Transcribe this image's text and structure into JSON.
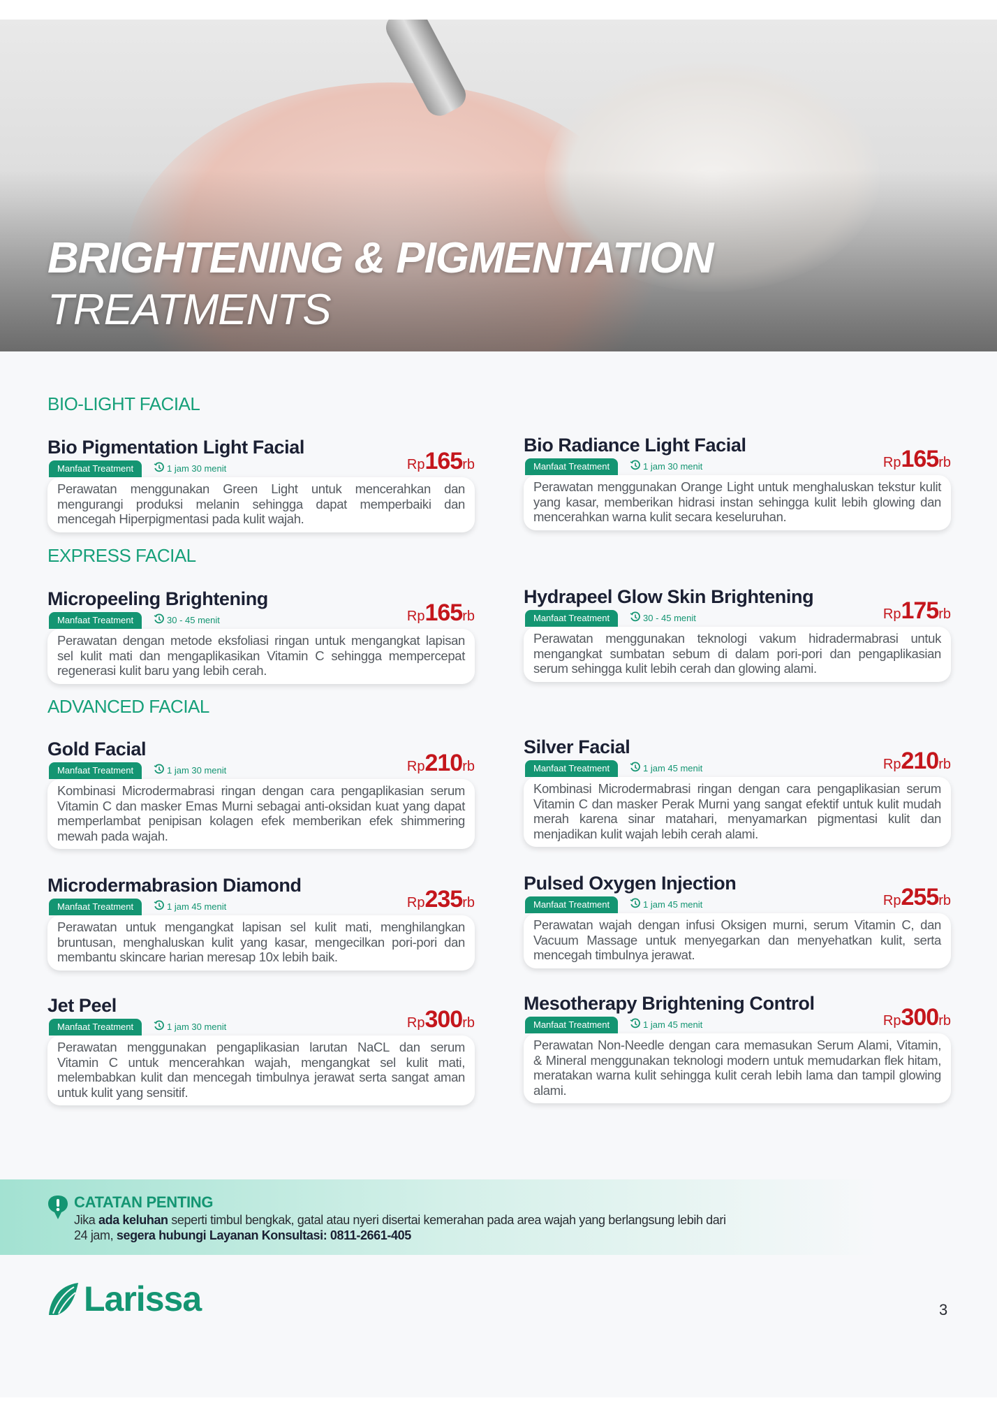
{
  "hero": {
    "title_line1": "BRIGHTENING & PIGMENTATION",
    "title_line2": "TREATMENTS"
  },
  "badge_label": "Manfaat Treatment",
  "currency_prefix": "Rp",
  "currency_suffix": "rb",
  "colors": {
    "accent": "#149572",
    "price": "#c4161c",
    "heading": "#17a07a"
  },
  "sections": [
    {
      "label": "BIO-LIGHT FACIAL"
    },
    {
      "label": "EXPRESS FACIAL"
    },
    {
      "label": "ADVANCED FACIAL"
    }
  ],
  "items": [
    {
      "title": "Bio Pigmentation Light Facial",
      "duration": "1 jam 30 menit",
      "price": "165",
      "desc": "Perawatan menggunakan Green Light untuk mencerahkan dan mengurangi produksi melanin sehingga dapat memperbaiki dan mencegah Hiperpigmentasi pada kulit wajah."
    },
    {
      "title": "Bio Radiance Light Facial",
      "duration": "1 jam 30 menit",
      "price": "165",
      "desc": "Perawatan menggunakan Orange Light untuk menghaluskan tekstur kulit yang kasar, memberikan hidrasi instan sehingga kulit lebih glowing dan mencerahkan warna kulit secara keseluruhan."
    },
    {
      "title": "Micropeeling Brightening",
      "duration": "30 - 45 menit",
      "price": "165",
      "desc": "Perawatan dengan metode eksfoliasi ringan untuk mengangkat lapisan sel kulit mati dan mengaplikasikan Vitamin C sehingga mempercepat regenerasi kulit baru yang lebih cerah."
    },
    {
      "title": "Hydrapeel Glow Skin Brightening",
      "duration": "30 - 45 menit",
      "price": "175",
      "desc": "Perawatan menggunakan teknologi vakum hidradermabrasi untuk mengangkat sumbatan sebum di dalam pori-pori dan pengaplikasian serum sehingga kulit lebih cerah dan glowing alami."
    },
    {
      "title": "Gold Facial",
      "duration": "1 jam 30 menit",
      "price": "210",
      "desc": "Kombinasi Microdermabrasi ringan dengan cara pengaplikasian serum Vitamin C dan masker Emas Murni sebagai anti-oksidan kuat yang dapat memperlambat penipisan kolagen efek memberikan efek shimmering mewah pada wajah."
    },
    {
      "title": "Silver Facial",
      "duration": "1 jam 45 menit",
      "price": "210",
      "desc": "Kombinasi Microdermabrasi ringan dengan cara pengaplikasian serum Vitamin C dan masker Perak Murni yang sangat efektif untuk kulit mudah merah karena sinar matahari, menyamarkan pigmentasi kulit dan menjadikan kulit wajah lebih cerah alami."
    },
    {
      "title": "Microdermabrasion Diamond",
      "duration": "1 jam 45 menit",
      "price": "235",
      "desc": "Perawatan untuk mengangkat lapisan sel kulit mati, menghilangkan bruntusan, menghaluskan kulit yang kasar, mengecilkan pori-pori dan membantu skincare harian meresap 10x lebih baik."
    },
    {
      "title": "Pulsed Oxygen Injection",
      "duration": "1 jam 45 menit",
      "price": "255",
      "desc": "Perawatan wajah dengan infusi Oksigen murni, serum Vitamin C, dan Vacuum Massage untuk menyegarkan dan menyehatkan kulit, serta mencegah timbulnya jerawat."
    },
    {
      "title": "Jet Peel",
      "duration": "1 jam 30 menit",
      "price": "300",
      "desc": "Perawatan menggunakan pengaplikasian larutan NaCL dan serum Vitamin C untuk mencerahkan wajah, mengangkat sel kulit mati, melembabkan kulit dan mencegah timbulnya jerawat serta sangat aman untuk kulit yang sensitif."
    },
    {
      "title": "Mesotherapy Brightening Control",
      "duration": "1 jam 45 menit",
      "price": "300",
      "desc": "Perawatan Non-Needle dengan cara memasukan Serum Alami, Vitamin, & Mineral menggunakan teknologi modern untuk memudarkan flek hitam, meratakan warna kulit sehingga kulit cerah lebih lama dan tampil glowing alami."
    }
  ],
  "note": {
    "icon": "exclamation-bubble-icon",
    "title": "CATATAN PENTING",
    "text_1": "Jika ",
    "bold_1": "ada keluhan",
    "text_2": " seperti timbul bengkak, gatal atau nyeri disertai kemerahan pada area wajah yang berlangsung lebih dari 24 jam, ",
    "bold_2": "segera hubungi Layanan Konsultasi: 0811-2661-405"
  },
  "footer": {
    "brand": "Larissa",
    "page_number": "3"
  }
}
